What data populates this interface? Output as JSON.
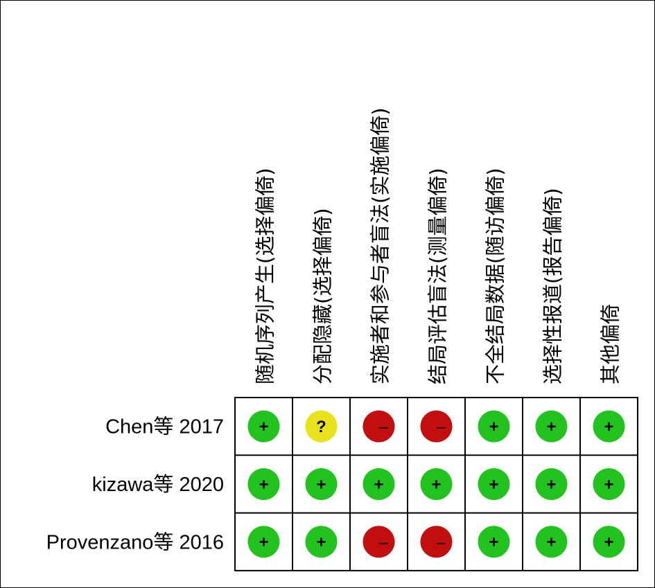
{
  "chart_data": {
    "type": "table",
    "columns": [
      "随机序列产生(选择偏倚)",
      "分配隐藏(选择偏倚)",
      "实施者和参与者盲法(实施偏倚)",
      "结局评估盲法(测量偏倚)",
      "不全结局数据(随访偏倚)",
      "选择性报道(报告偏倚)",
      "其他偏倚"
    ],
    "rows": [
      {
        "study": "Chen等 2017",
        "ratings": [
          "low",
          "unclear",
          "high",
          "high",
          "low",
          "low",
          "low"
        ]
      },
      {
        "study": "kizawa等 2020",
        "ratings": [
          "low",
          "low",
          "low",
          "low",
          "low",
          "low",
          "low"
        ]
      },
      {
        "study": "Provenzano等 2016",
        "ratings": [
          "low",
          "low",
          "high",
          "high",
          "low",
          "low",
          "low"
        ]
      }
    ],
    "rating_legend": {
      "low": {
        "symbol": "+",
        "color": "#22c21f"
      },
      "unclear": {
        "symbol": "?",
        "color": "#e8e31c"
      },
      "high": {
        "symbol": "−",
        "color": "#c20e0e"
      }
    }
  }
}
